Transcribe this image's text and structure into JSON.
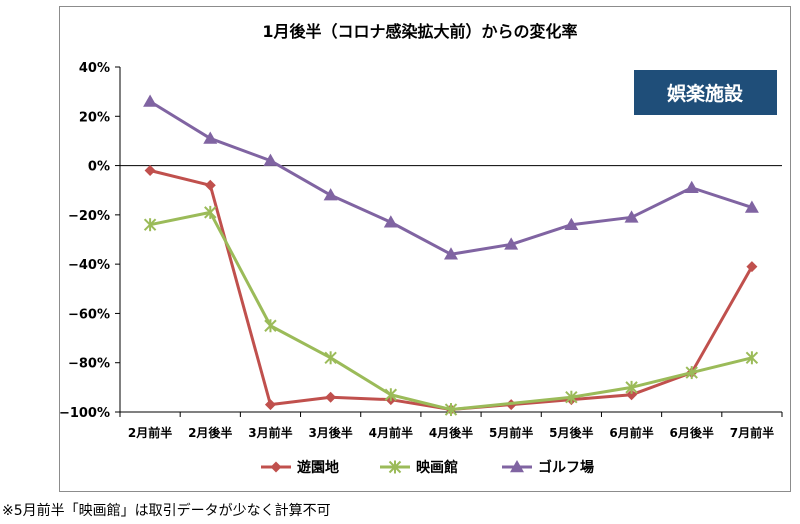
{
  "chart_data": {
    "type": "line",
    "title": "1月後半（コロナ感染拡大前）からの変化率",
    "tag": "娯楽施設",
    "categories": [
      "2月前半",
      "2月後半",
      "3月前半",
      "3月後半",
      "4月前半",
      "4月後半",
      "5月前半",
      "5月後半",
      "6月前半",
      "6月後半",
      "7月前半"
    ],
    "ylim": [
      -100,
      40
    ],
    "yticks": [
      40,
      20,
      0,
      -20,
      -40,
      -60,
      -80,
      -100
    ],
    "ytick_labels": [
      "40%",
      "20%",
      "0%",
      "−20%",
      "−40%",
      "−60%",
      "−80%",
      "−100%"
    ],
    "legend_position": "bottom",
    "series": [
      {
        "name": "遊園地",
        "color": "#c0504d",
        "marker": "diamond",
        "values": [
          -2,
          -8,
          -97,
          -94,
          -95,
          -99,
          -97,
          -95,
          -93,
          -84,
          -41
        ]
      },
      {
        "name": "映画館",
        "color": "#9bbb59",
        "marker": "x",
        "values": [
          -24,
          -19,
          -65,
          -78,
          -93,
          -99,
          null,
          -94,
          -90,
          -84,
          -78
        ]
      },
      {
        "name": "ゴルフ場",
        "color": "#8064a2",
        "marker": "triangle",
        "values": [
          26,
          11,
          2,
          -12,
          -23,
          -36,
          -32,
          -24,
          -21,
          -9,
          -17
        ]
      }
    ]
  },
  "footnote": "※5月前半「映画館」は取引データが少なく計算不可"
}
